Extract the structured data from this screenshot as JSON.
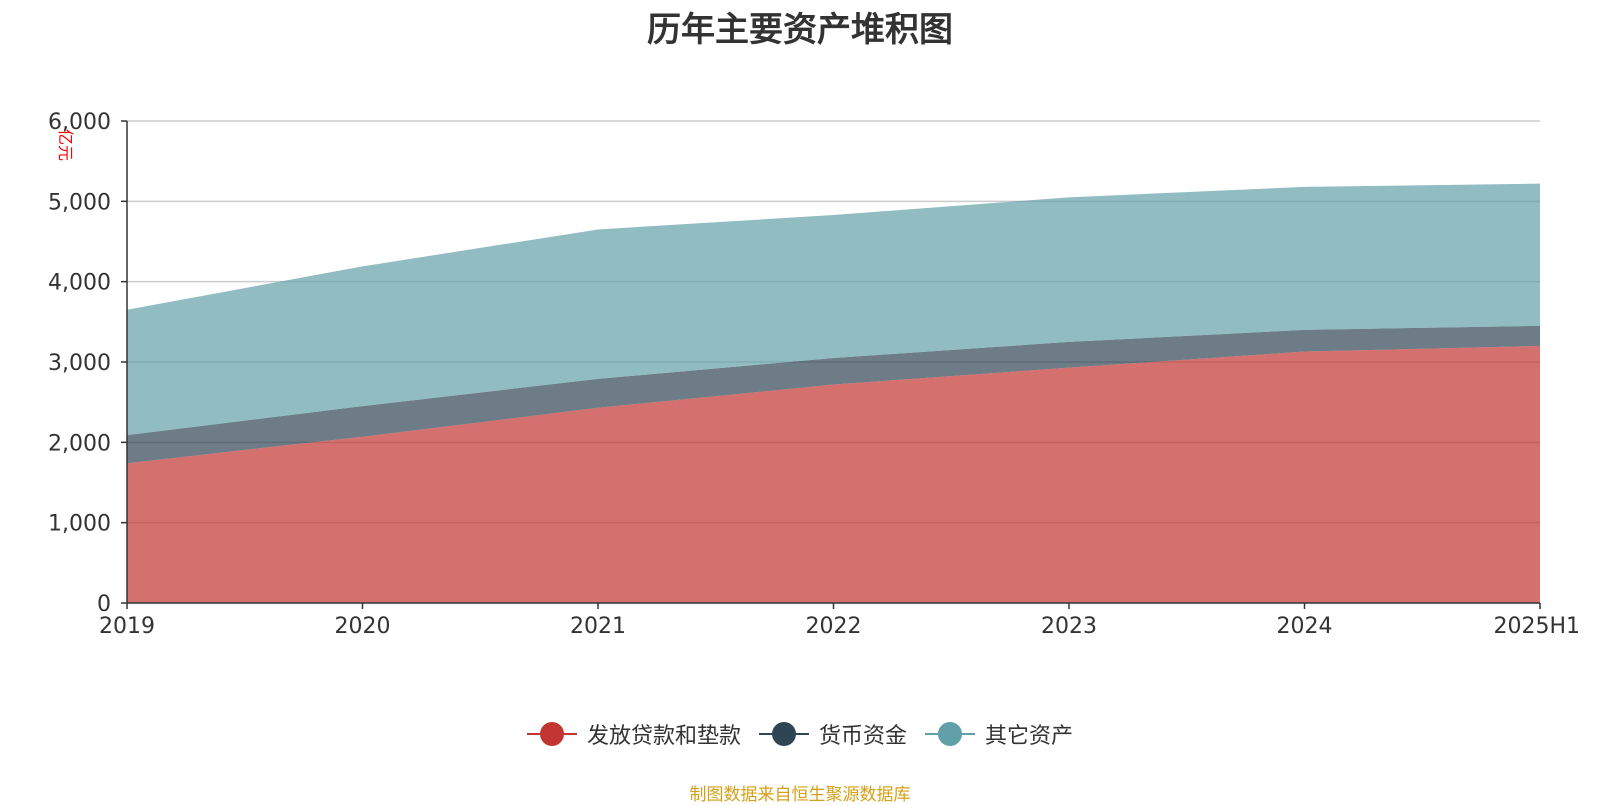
{
  "chart_data": {
    "type": "area",
    "stacked": true,
    "title": "历年主要资产堆积图",
    "unit_label": "亿元",
    "x": [
      "2019",
      "2020",
      "2021",
      "2022",
      "2023",
      "2024",
      "2025H1"
    ],
    "ylim": [
      0,
      6000
    ],
    "yticks": [
      "0",
      "1,000",
      "2,000",
      "3,000",
      "4,000",
      "5,000",
      "6,000"
    ],
    "ytick_values": [
      0,
      1000,
      2000,
      3000,
      4000,
      5000,
      6000
    ],
    "grid": true,
    "legend_position": "bottom-center",
    "series": [
      {
        "name": "发放贷款和垫款",
        "color": "#c23531",
        "values": [
          1740,
          2070,
          2430,
          2720,
          2930,
          3130,
          3200
        ]
      },
      {
        "name": "货币资金",
        "color": "#2f4554",
        "values": [
          350,
          380,
          360,
          330,
          320,
          270,
          250
        ]
      },
      {
        "name": "其它资产",
        "color": "#61a0a8",
        "values": [
          1560,
          1740,
          1860,
          1780,
          1800,
          1780,
          1770
        ]
      }
    ]
  },
  "source_note": "制图数据来自恒生聚源数据库"
}
